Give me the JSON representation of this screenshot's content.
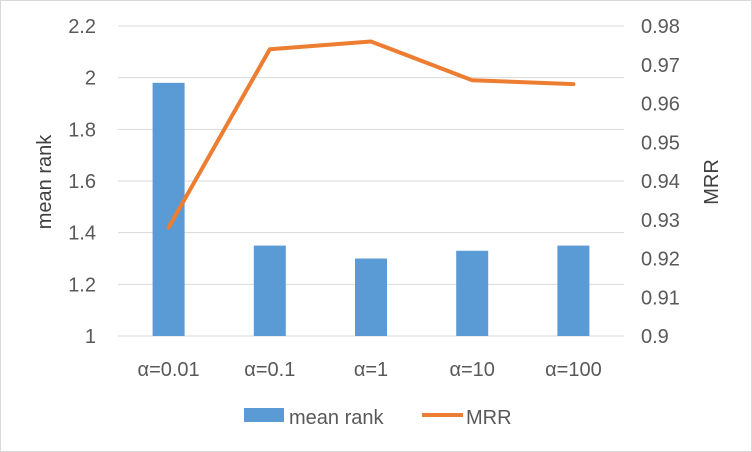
{
  "chart_data": {
    "type": "bar+line",
    "categories": [
      "α=0.01",
      "α=0.1",
      "α=1",
      "α=10",
      "α=100"
    ],
    "series": [
      {
        "name": "mean rank",
        "type": "bar",
        "axis": "left",
        "values": [
          1.98,
          1.35,
          1.3,
          1.33,
          1.35
        ]
      },
      {
        "name": "MRR",
        "type": "line",
        "axis": "right",
        "values": [
          0.928,
          0.974,
          0.976,
          0.966,
          0.965
        ]
      }
    ],
    "ylabel": "mean rank",
    "y2label": "MRR",
    "ylim": [
      1,
      2.2
    ],
    "y2lim": [
      0.9,
      0.98
    ],
    "yticks": [
      "1",
      "1.2",
      "1.4",
      "1.6",
      "1.8",
      "2",
      "2.2"
    ],
    "y2ticks": [
      "0.9",
      "0.91",
      "0.92",
      "0.93",
      "0.94",
      "0.95",
      "0.96",
      "0.97",
      "0.98"
    ],
    "legend": [
      "mean rank",
      "MRR"
    ],
    "legend_position": "bottom",
    "grid": "horizontal",
    "colors": {
      "bar": "#5b9bd5",
      "line": "#ed7d31",
      "grid": "#d9d9d9",
      "text": "#595959"
    }
  }
}
